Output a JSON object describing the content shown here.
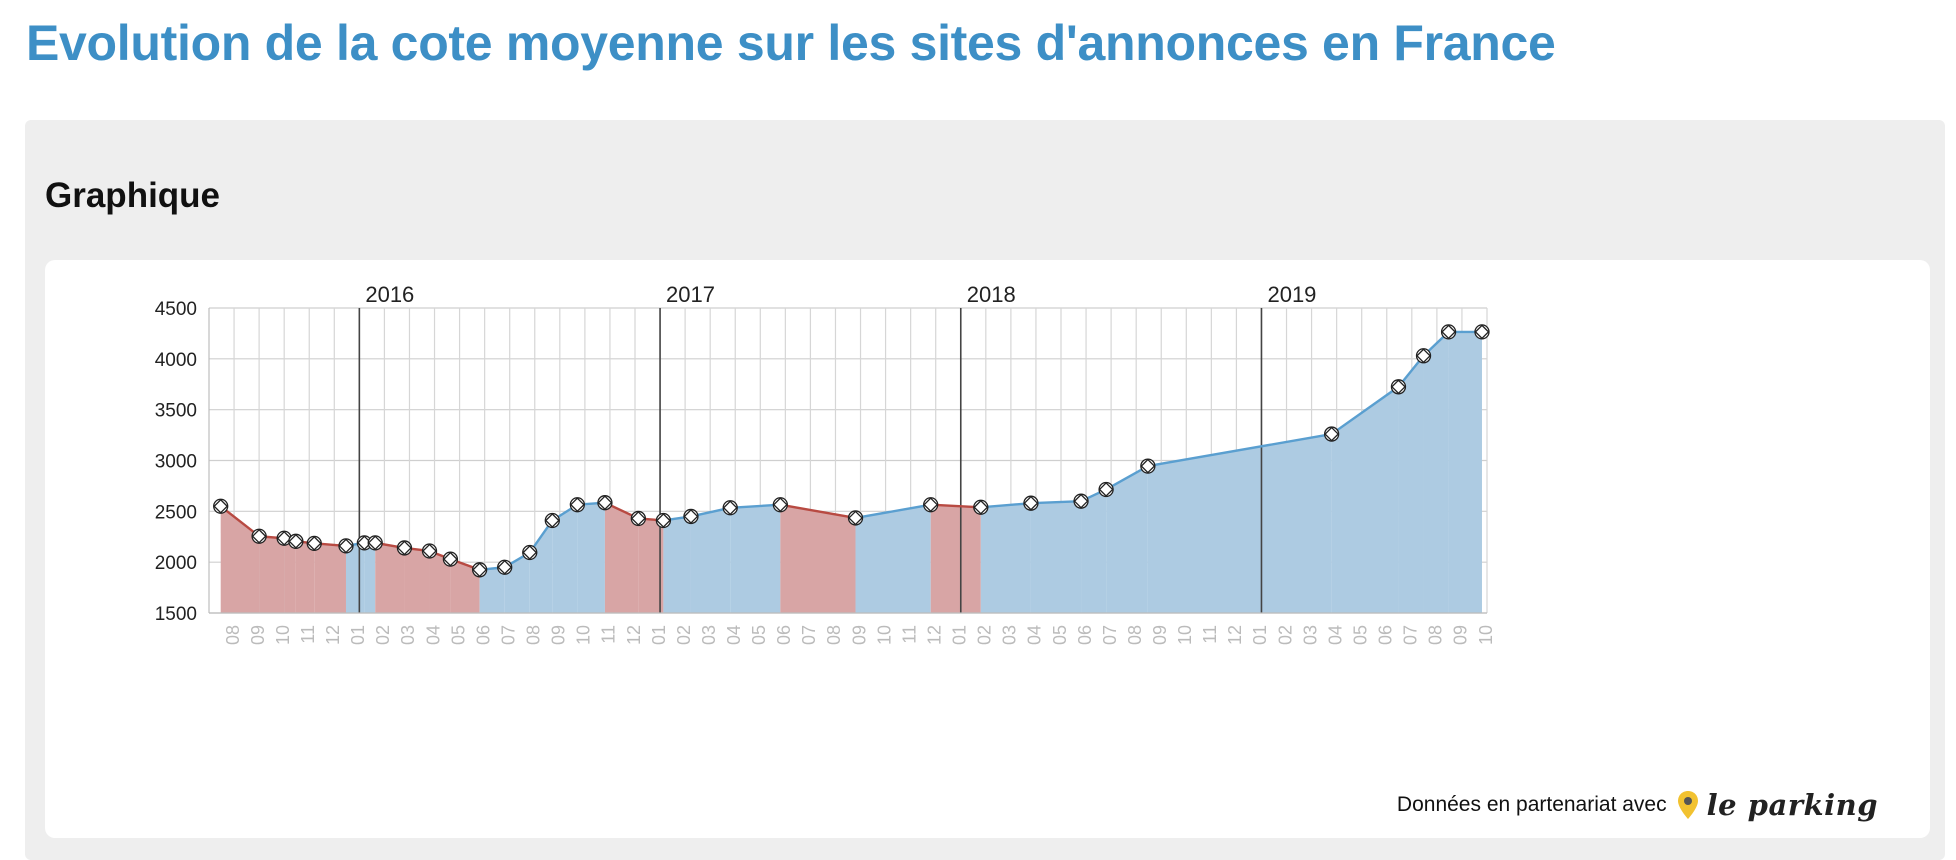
{
  "page": {
    "title": "Evolution de la cote moyenne sur les sites d'annonces en France"
  },
  "section": {
    "title": "Graphique"
  },
  "credit": {
    "text": "Données en partenariat avec",
    "brand": "le parking"
  },
  "colors": {
    "accent": "#3d8fc6",
    "rise_fill": "#adcbe2",
    "rise_line": "#5a9fd0",
    "fall_fill": "#d8a5a5",
    "fall_line": "#b84a42",
    "logo_pin": "#f2c230"
  },
  "chart_data": {
    "type": "area",
    "xlabel": "",
    "ylabel": "",
    "ylim": [
      1500,
      4500
    ],
    "yticks": [
      1500,
      2000,
      2500,
      3000,
      3500,
      4000,
      4500
    ],
    "grid": true,
    "x_range": [
      "2015-07",
      "2019-10"
    ],
    "month_ticks": [
      "08",
      "09",
      "10",
      "11",
      "12",
      "01",
      "02",
      "03",
      "04",
      "05",
      "06",
      "07",
      "08",
      "09",
      "10",
      "11",
      "12",
      "01",
      "02",
      "03",
      "04",
      "05",
      "06",
      "07",
      "08",
      "09",
      "10",
      "11",
      "12",
      "01",
      "02",
      "03",
      "04",
      "05",
      "06",
      "07",
      "08",
      "09",
      "10",
      "11",
      "12",
      "01",
      "02",
      "03",
      "04",
      "05",
      "06",
      "07",
      "08",
      "09",
      "10"
    ],
    "year_labels": [
      {
        "label": "2016",
        "date": "2016-01"
      },
      {
        "label": "2017",
        "date": "2017-01"
      },
      {
        "label": "2018",
        "date": "2018-01"
      },
      {
        "label": "2019",
        "date": "2019-01"
      }
    ],
    "color_rule": "red fill where the value decreases, blue fill where it increases",
    "points": [
      {
        "x": "2015-07-15",
        "y": 2550
      },
      {
        "x": "2015-09-01",
        "y": 2255
      },
      {
        "x": "2015-10-01",
        "y": 2235
      },
      {
        "x": "2015-10-15",
        "y": 2205
      },
      {
        "x": "2015-11-07",
        "y": 2185
      },
      {
        "x": "2015-12-15",
        "y": 2160
      },
      {
        "x": "2016-01-07",
        "y": 2190
      },
      {
        "x": "2016-01-20",
        "y": 2190
      },
      {
        "x": "2016-02-25",
        "y": 2140
      },
      {
        "x": "2016-03-25",
        "y": 2110
      },
      {
        "x": "2016-04-20",
        "y": 2030
      },
      {
        "x": "2016-05-25",
        "y": 1925
      },
      {
        "x": "2016-06-25",
        "y": 1950
      },
      {
        "x": "2016-07-25",
        "y": 2095
      },
      {
        "x": "2016-08-22",
        "y": 2410
      },
      {
        "x": "2016-09-22",
        "y": 2565
      },
      {
        "x": "2016-10-25",
        "y": 2585
      },
      {
        "x": "2016-12-05",
        "y": 2430
      },
      {
        "x": "2017-01-05",
        "y": 2410
      },
      {
        "x": "2017-02-08",
        "y": 2450
      },
      {
        "x": "2017-03-25",
        "y": 2535
      },
      {
        "x": "2017-05-25",
        "y": 2565
      },
      {
        "x": "2017-08-25",
        "y": 2435
      },
      {
        "x": "2017-11-25",
        "y": 2565
      },
      {
        "x": "2018-01-25",
        "y": 2540
      },
      {
        "x": "2018-03-25",
        "y": 2580
      },
      {
        "x": "2018-05-25",
        "y": 2600
      },
      {
        "x": "2018-06-25",
        "y": 2715
      },
      {
        "x": "2018-08-15",
        "y": 2945
      },
      {
        "x": "2019-03-25",
        "y": 3260
      },
      {
        "x": "2019-06-15",
        "y": 3725
      },
      {
        "x": "2019-07-15",
        "y": 4030
      },
      {
        "x": "2019-08-15",
        "y": 4265
      },
      {
        "x": "2019-09-25",
        "y": 4265
      }
    ]
  }
}
